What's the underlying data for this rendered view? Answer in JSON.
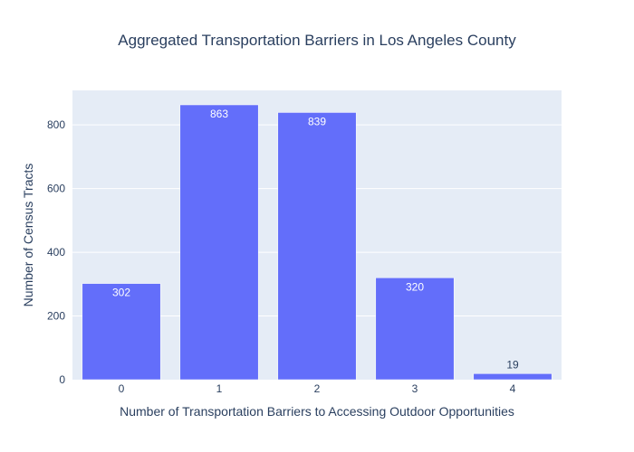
{
  "chart_data": {
    "type": "bar",
    "title": "Aggregated Transportation Barriers in Los Angeles County",
    "xlabel": "Number of Transportation Barriers to Accessing Outdoor Opportunities",
    "ylabel": "Number of Census Tracts",
    "categories": [
      "0",
      "1",
      "2",
      "3",
      "4"
    ],
    "values": [
      302,
      863,
      839,
      320,
      19
    ],
    "value_labels": [
      "302",
      "863",
      "839",
      "320",
      "19"
    ],
    "ylim": [
      0,
      908.4
    ],
    "yticks": [
      0,
      200,
      400,
      600,
      800
    ],
    "ytick_labels": [
      "0",
      "200",
      "400",
      "600",
      "800"
    ],
    "grid": true,
    "legend": "none",
    "colors": {
      "bar": "#636efa",
      "plot_bg": "#e5ecf6",
      "grid": "#ffffff",
      "text": "#2a3f5f",
      "label_inside": "#ffffff"
    }
  }
}
